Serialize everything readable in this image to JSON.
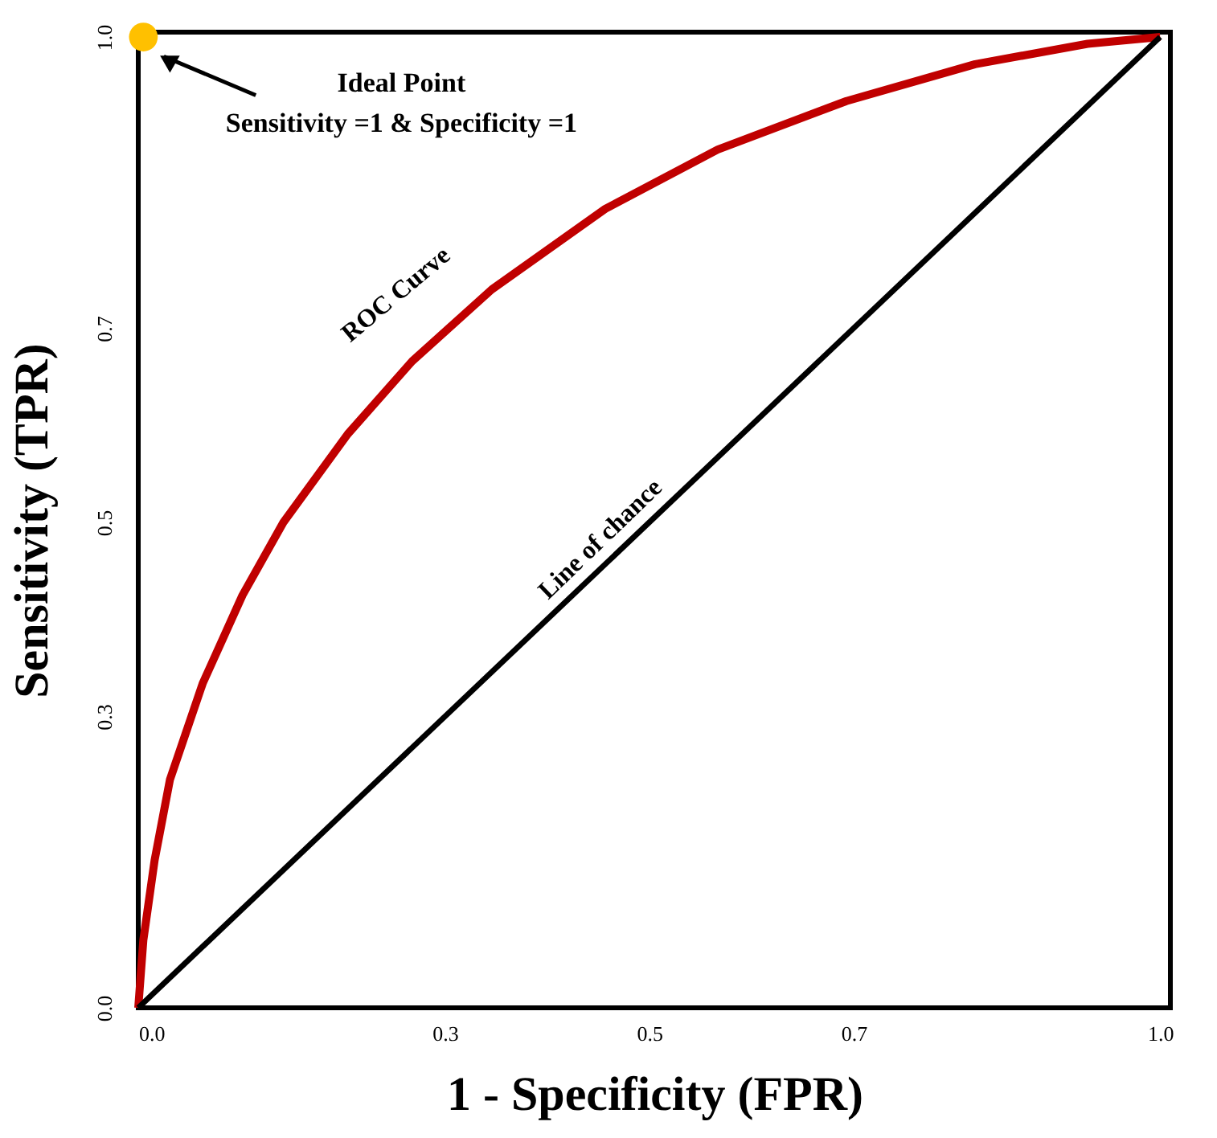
{
  "chart_data": {
    "type": "line",
    "xlabel": "1 - Specificity (FPR)",
    "ylabel": "Sensitivity (TPR)",
    "xlim": [
      0,
      1.01
    ],
    "ylim": [
      0,
      1.005
    ],
    "xticks": [
      {
        "value": 0,
        "label": "0.0"
      },
      {
        "value": 0.3,
        "label": "0.3"
      },
      {
        "value": 0.5,
        "label": "0.5"
      },
      {
        "value": 0.7,
        "label": "0.7"
      },
      {
        "value": 1.0,
        "label": "1.0"
      }
    ],
    "yticks": [
      {
        "value": 0,
        "label": "0.0"
      },
      {
        "value": 0.3,
        "label": "0.3"
      },
      {
        "value": 0.5,
        "label": "0.5"
      },
      {
        "value": 0.7,
        "label": "0.7"
      },
      {
        "value": 1.0,
        "label": "1.0"
      }
    ],
    "line_style": "solid",
    "series": [
      {
        "name": "ROC Curve",
        "color": "#c00000",
        "x": [
          0,
          0.005,
          0.016,
          0.031,
          0.063,
          0.102,
          0.142,
          0.205,
          0.268,
          0.346,
          0.457,
          0.567,
          0.693,
          0.819,
          0.929,
          1.0
        ],
        "values": [
          0,
          0.07,
          0.152,
          0.235,
          0.334,
          0.425,
          0.5,
          0.591,
          0.666,
          0.74,
          0.823,
          0.884,
          0.934,
          0.972,
          0.993,
          1.0
        ]
      },
      {
        "name": "Line of chance",
        "color": "#000000",
        "x": [
          0,
          1
        ],
        "values": [
          0,
          1
        ]
      },
      {
        "type": "scatter",
        "marker": "circle",
        "color": "#ffc000",
        "x": [
          0.005
        ],
        "values": [
          1.0
        ]
      }
    ],
    "annotations": [
      "Ideal Point",
      "Sensitivity =1 & Specificity =1"
    ]
  }
}
